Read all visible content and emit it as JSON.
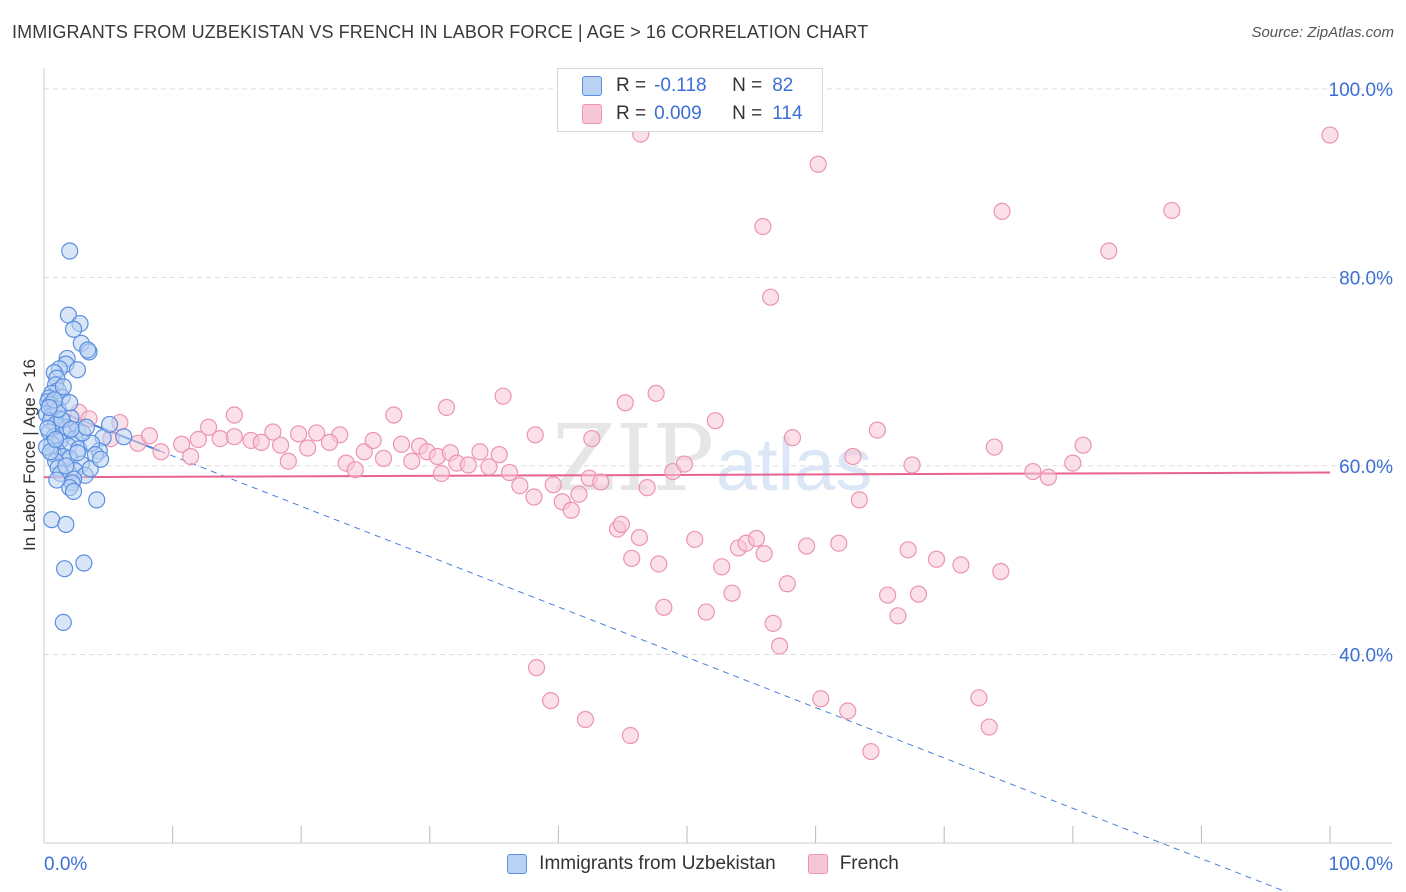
{
  "title": "IMMIGRANTS FROM UZBEKISTAN VS FRENCH IN LABOR FORCE | AGE > 16 CORRELATION CHART",
  "source": "Source: ZipAtlas.com",
  "legend": {
    "rows": [
      {
        "r_label": "R =",
        "r_value": "-0.118",
        "n_label": "N =",
        "n_value": "82"
      },
      {
        "r_label": "R =",
        "r_value": "0.009",
        "n_label": "N =",
        "n_value": "114"
      }
    ]
  },
  "watermark": {
    "zip": "ZIP",
    "atlas": "atlas"
  },
  "colors": {
    "blue_fill": "#b9d2f3",
    "blue_stroke": "#5b8fe0",
    "blue_line": "#4a80d8",
    "pink_fill": "#f7c6d5",
    "pink_stroke": "#ec94b1",
    "pink_line": "#e8638f",
    "axis_label": "#3b6fd6",
    "grid": "#dcdcdc"
  },
  "chart_data": {
    "type": "scatter",
    "title": "IMMIGRANTS FROM UZBEKISTAN VS FRENCH IN LABOR FORCE | AGE > 16 CORRELATION CHART",
    "xlabel": "",
    "ylabel": "In Labor Force | Age > 16",
    "xlim": [
      0,
      100
    ],
    "ylim": [
      20,
      102
    ],
    "x_tick_labels": [
      "0.0%",
      "100.0%"
    ],
    "y_ticks": [
      40,
      60,
      80,
      100
    ],
    "y_tick_labels": [
      "40.0%",
      "60.0%",
      "80.0%",
      "100.0%"
    ],
    "series": [
      {
        "name": "Immigrants from Uzbekistan",
        "color": "blue",
        "R": -0.118,
        "N": 82,
        "trend": {
          "style": "dashed",
          "x": [
            0,
            100
          ],
          "y": [
            66.4,
            13.0
          ]
        },
        "points": [
          [
            2.0,
            82.8
          ],
          [
            1.9,
            76.0
          ],
          [
            2.8,
            75.1
          ],
          [
            2.3,
            74.5
          ],
          [
            2.9,
            73.0
          ],
          [
            3.5,
            72.1
          ],
          [
            3.4,
            72.3
          ],
          [
            1.8,
            71.4
          ],
          [
            1.7,
            70.8
          ],
          [
            2.6,
            70.2
          ],
          [
            1.2,
            70.3
          ],
          [
            0.8,
            69.9
          ],
          [
            1.0,
            69.3
          ],
          [
            0.9,
            68.6
          ],
          [
            1.1,
            68.0
          ],
          [
            0.6,
            67.7
          ],
          [
            0.4,
            67.2
          ],
          [
            1.4,
            67.3
          ],
          [
            0.3,
            66.8
          ],
          [
            0.5,
            66.5
          ],
          [
            0.7,
            66.1
          ],
          [
            1.0,
            65.7
          ],
          [
            0.2,
            65.5
          ],
          [
            0.6,
            65.3
          ],
          [
            1.3,
            65.0
          ],
          [
            2.1,
            65.1
          ],
          [
            0.5,
            64.8
          ],
          [
            0.9,
            64.4
          ],
          [
            1.8,
            64.1
          ],
          [
            2.6,
            63.8
          ],
          [
            0.4,
            63.6
          ],
          [
            1.6,
            63.4
          ],
          [
            0.8,
            63.1
          ],
          [
            2.4,
            62.9
          ],
          [
            1.2,
            62.6
          ],
          [
            0.6,
            62.3
          ],
          [
            1.9,
            62.1
          ],
          [
            2.7,
            61.8
          ],
          [
            1.0,
            61.6
          ],
          [
            0.7,
            61.3
          ],
          [
            1.5,
            61.0
          ],
          [
            2.0,
            60.8
          ],
          [
            0.9,
            60.5
          ],
          [
            2.9,
            60.2
          ],
          [
            1.1,
            59.8
          ],
          [
            2.4,
            59.5
          ],
          [
            1.3,
            59.2
          ],
          [
            3.2,
            59.0
          ],
          [
            2.3,
            58.6
          ],
          [
            2.2,
            58.2
          ],
          [
            2.0,
            57.7
          ],
          [
            2.3,
            57.3
          ],
          [
            4.1,
            56.4
          ],
          [
            0.6,
            54.3
          ],
          [
            1.7,
            53.8
          ],
          [
            3.1,
            49.7
          ],
          [
            1.6,
            49.1
          ],
          [
            1.5,
            43.4
          ],
          [
            4.6,
            63.0
          ],
          [
            4.3,
            61.6
          ],
          [
            6.2,
            63.1
          ],
          [
            5.1,
            64.4
          ],
          [
            3.7,
            62.4
          ],
          [
            4.0,
            61.2
          ],
          [
            3.0,
            63.5
          ],
          [
            1.4,
            64.9
          ],
          [
            0.3,
            64.0
          ],
          [
            0.2,
            62.0
          ],
          [
            0.5,
            61.5
          ],
          [
            1.1,
            66.0
          ],
          [
            2.0,
            66.7
          ],
          [
            1.5,
            68.4
          ],
          [
            0.8,
            67.0
          ],
          [
            0.4,
            66.2
          ],
          [
            3.3,
            64.1
          ],
          [
            2.6,
            61.4
          ],
          [
            1.7,
            60.0
          ],
          [
            1.0,
            58.5
          ],
          [
            3.6,
            59.7
          ],
          [
            4.4,
            60.7
          ],
          [
            0.9,
            62.8
          ],
          [
            2.1,
            63.9
          ]
        ]
      },
      {
        "name": "French",
        "color": "pink",
        "R": 0.009,
        "N": 114,
        "trend": {
          "style": "solid",
          "x": [
            0,
            100
          ],
          "y": [
            58.8,
            59.3
          ]
        },
        "points": [
          [
            100.0,
            95.1
          ],
          [
            46.4,
            95.2
          ],
          [
            60.2,
            92.0
          ],
          [
            55.9,
            85.4
          ],
          [
            74.5,
            87.0
          ],
          [
            87.7,
            87.1
          ],
          [
            82.8,
            82.8
          ],
          [
            56.5,
            77.9
          ],
          [
            35.7,
            67.4
          ],
          [
            47.6,
            67.7
          ],
          [
            45.2,
            66.7
          ],
          [
            31.3,
            66.2
          ],
          [
            64.8,
            63.8
          ],
          [
            14.8,
            65.4
          ],
          [
            27.2,
            65.4
          ],
          [
            38.2,
            63.3
          ],
          [
            42.6,
            62.9
          ],
          [
            73.9,
            62.0
          ],
          [
            21.2,
            63.5
          ],
          [
            23.0,
            63.3
          ],
          [
            2.7,
            65.7
          ],
          [
            3.5,
            65.0
          ],
          [
            5.2,
            62.9
          ],
          [
            7.3,
            62.4
          ],
          [
            9.1,
            61.5
          ],
          [
            10.7,
            62.3
          ],
          [
            12.0,
            62.8
          ],
          [
            12.8,
            64.1
          ],
          [
            13.7,
            62.9
          ],
          [
            14.8,
            63.1
          ],
          [
            16.1,
            62.7
          ],
          [
            16.9,
            62.5
          ],
          [
            17.8,
            63.6
          ],
          [
            18.4,
            62.2
          ],
          [
            19.8,
            63.4
          ],
          [
            20.5,
            61.9
          ],
          [
            22.2,
            62.5
          ],
          [
            23.5,
            60.3
          ],
          [
            24.9,
            61.5
          ],
          [
            25.6,
            62.7
          ],
          [
            26.4,
            60.8
          ],
          [
            27.8,
            62.3
          ],
          [
            28.6,
            60.5
          ],
          [
            29.2,
            62.1
          ],
          [
            29.8,
            61.5
          ],
          [
            30.6,
            61.0
          ],
          [
            31.6,
            61.4
          ],
          [
            32.1,
            60.3
          ],
          [
            33.0,
            60.1
          ],
          [
            33.9,
            61.5
          ],
          [
            34.6,
            59.9
          ],
          [
            35.4,
            61.2
          ],
          [
            36.2,
            59.3
          ],
          [
            37.0,
            57.9
          ],
          [
            38.1,
            56.7
          ],
          [
            39.6,
            58.0
          ],
          [
            40.3,
            56.2
          ],
          [
            41.0,
            55.3
          ],
          [
            41.6,
            57.0
          ],
          [
            42.4,
            58.7
          ],
          [
            43.3,
            58.3
          ],
          [
            44.6,
            53.3
          ],
          [
            44.9,
            53.8
          ],
          [
            45.7,
            50.2
          ],
          [
            46.3,
            52.4
          ],
          [
            46.9,
            57.7
          ],
          [
            47.8,
            49.6
          ],
          [
            48.2,
            45.0
          ],
          [
            48.9,
            59.4
          ],
          [
            49.8,
            60.2
          ],
          [
            50.6,
            52.2
          ],
          [
            51.5,
            44.5
          ],
          [
            52.2,
            64.8
          ],
          [
            52.7,
            49.3
          ],
          [
            53.5,
            46.5
          ],
          [
            54.0,
            51.3
          ],
          [
            54.6,
            51.8
          ],
          [
            55.4,
            52.3
          ],
          [
            56.0,
            50.7
          ],
          [
            56.7,
            43.3
          ],
          [
            57.2,
            40.9
          ],
          [
            57.8,
            47.5
          ],
          [
            59.3,
            51.5
          ],
          [
            60.4,
            35.3
          ],
          [
            61.8,
            51.8
          ],
          [
            62.5,
            34.0
          ],
          [
            63.4,
            56.4
          ],
          [
            64.3,
            29.7
          ],
          [
            65.6,
            46.3
          ],
          [
            66.4,
            44.1
          ],
          [
            67.2,
            51.1
          ],
          [
            68.0,
            46.4
          ],
          [
            69.4,
            50.1
          ],
          [
            71.3,
            49.5
          ],
          [
            72.7,
            35.4
          ],
          [
            73.5,
            32.3
          ],
          [
            74.4,
            48.8
          ],
          [
            76.9,
            59.4
          ],
          [
            78.1,
            58.8
          ],
          [
            80.0,
            60.3
          ],
          [
            80.8,
            62.2
          ],
          [
            38.3,
            38.6
          ],
          [
            39.4,
            35.1
          ],
          [
            42.1,
            33.1
          ],
          [
            45.6,
            31.4
          ],
          [
            58.2,
            63.0
          ],
          [
            62.9,
            61.0
          ],
          [
            67.5,
            60.1
          ],
          [
            30.9,
            59.2
          ],
          [
            24.2,
            59.6
          ],
          [
            19.0,
            60.5
          ],
          [
            11.4,
            61.0
          ],
          [
            8.2,
            63.2
          ],
          [
            5.9,
            64.6
          ]
        ]
      }
    ],
    "legend": [
      "Immigrants from Uzbekistan",
      "French"
    ]
  }
}
